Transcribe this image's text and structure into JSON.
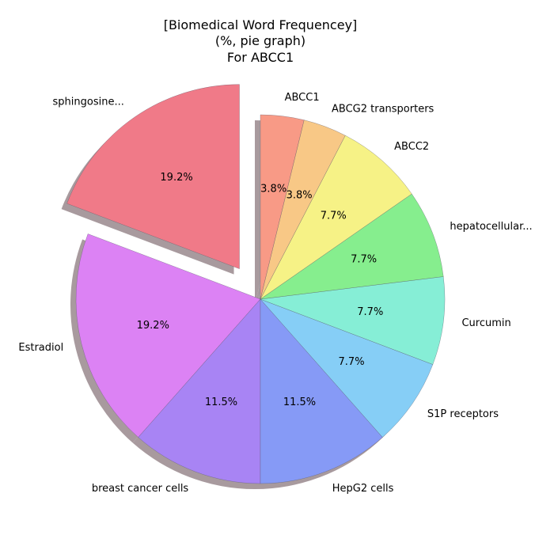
{
  "chart_data": {
    "type": "pie",
    "title": [
      "[Biomedical Word Frequencey]",
      "(%, pie graph)",
      "For ABCC1"
    ],
    "slices": [
      {
        "label": "sphingosine...",
        "value": 19.2,
        "pct_label": "19.2%",
        "color": "#f07a88",
        "exploded": true
      },
      {
        "label": "Estradiol",
        "value": 19.2,
        "pct_label": "19.2%",
        "color": "#dc82f4",
        "exploded": false
      },
      {
        "label": "breast cancer cells",
        "value": 11.5,
        "pct_label": "11.5%",
        "color": "#a884f4",
        "exploded": false
      },
      {
        "label": "HepG2 cells",
        "value": 11.5,
        "pct_label": "11.5%",
        "color": "#869af6",
        "exploded": false
      },
      {
        "label": "S1P receptors",
        "value": 7.7,
        "pct_label": "7.7%",
        "color": "#86cef6",
        "exploded": false
      },
      {
        "label": "Curcumin",
        "value": 7.7,
        "pct_label": "7.7%",
        "color": "#86eed6",
        "exploded": false
      },
      {
        "label": "hepatocellular...",
        "value": 7.7,
        "pct_label": "7.7%",
        "color": "#86ee8e",
        "exploded": false
      },
      {
        "label": "ABCC2",
        "value": 7.7,
        "pct_label": "7.7%",
        "color": "#f6f286",
        "exploded": false
      },
      {
        "label": "ABCG2 transporters",
        "value": 3.8,
        "pct_label": "3.8%",
        "color": "#f8c886",
        "exploded": false
      },
      {
        "label": "ABCC1",
        "value": 3.8,
        "pct_label": "3.8%",
        "color": "#f89a86",
        "exploded": false
      }
    ],
    "shadow_color": "#a89a9e",
    "legend": "none",
    "grid": false
  }
}
